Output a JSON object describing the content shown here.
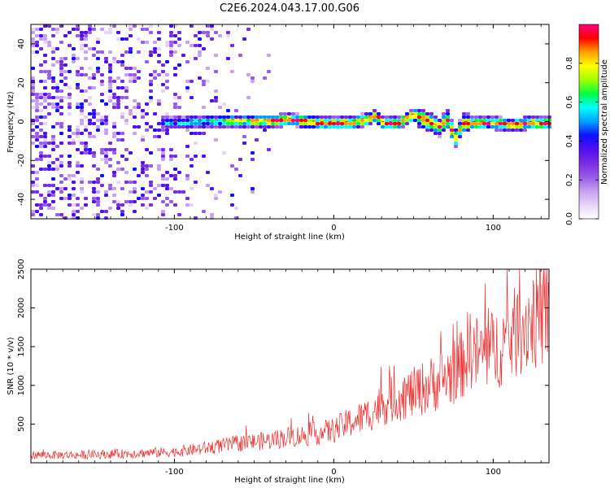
{
  "title": "C2E6.2024.043.17.00.G06",
  "chart_data": [
    {
      "type": "heatmap",
      "xlabel": "Height of straight line (km)",
      "ylabel": "Frequency (Hz)",
      "xlim": [
        -190,
        135
      ],
      "ylim": [
        -50,
        50
      ],
      "xticks": [
        -100,
        0,
        100
      ],
      "yticks": [
        -40,
        -20,
        0,
        20,
        40
      ],
      "grid": false,
      "colorbar": {
        "label": "Normalized spectral amplitude",
        "range": [
          0.0,
          1.0
        ],
        "ticks": [
          0.0,
          0.2,
          0.4,
          0.6,
          0.8
        ],
        "colormap": [
          "#ffffff",
          "#e8d4f8",
          "#c8a0f0",
          "#9a5ce8",
          "#7a2ce0",
          "#5010f0",
          "#1010ff",
          "#00a0ff",
          "#00ffff",
          "#00ff40",
          "#a0ff00",
          "#ffff00",
          "#ffa000",
          "#ff0000",
          "#ff0080"
        ]
      },
      "ridge": {
        "name": "signal ridge",
        "x": [
          -100,
          -80,
          -60,
          -40,
          -30,
          -20,
          -10,
          0,
          10,
          20,
          25,
          30,
          40,
          45,
          50,
          55,
          60,
          65,
          70,
          75,
          80,
          90,
          100,
          110,
          120,
          130
        ],
        "y": [
          0,
          1,
          1,
          1,
          2,
          1,
          0,
          0,
          0,
          2,
          4,
          0,
          0,
          3,
          4,
          2,
          0,
          -2,
          2,
          -8,
          0,
          0,
          0,
          -1,
          0,
          0
        ]
      }
    },
    {
      "type": "line",
      "xlabel": "Height of straight line (km)",
      "ylabel": "SNR (10 * v/v)",
      "xlim": [
        -190,
        135
      ],
      "ylim": [
        0,
        2500
      ],
      "xticks": [
        -100,
        0,
        100
      ],
      "yticks": [
        500,
        1000,
        1500,
        2000,
        2500
      ],
      "grid": false,
      "series": [
        {
          "color": "#ee2c2c",
          "x": [
            -190,
            -160,
            -130,
            -100,
            -80,
            -60,
            -40,
            -30,
            -20,
            -10,
            0,
            10,
            20,
            30,
            40,
            50,
            60,
            70,
            80,
            85,
            90,
            100,
            110,
            120,
            130,
            135
          ],
          "y": [
            100,
            100,
            120,
            140,
            190,
            250,
            290,
            330,
            350,
            380,
            420,
            520,
            600,
            750,
            850,
            900,
            1000,
            1100,
            1250,
            1500,
            1400,
            1450,
            1600,
            1800,
            1900,
            1950
          ]
        }
      ]
    }
  ]
}
